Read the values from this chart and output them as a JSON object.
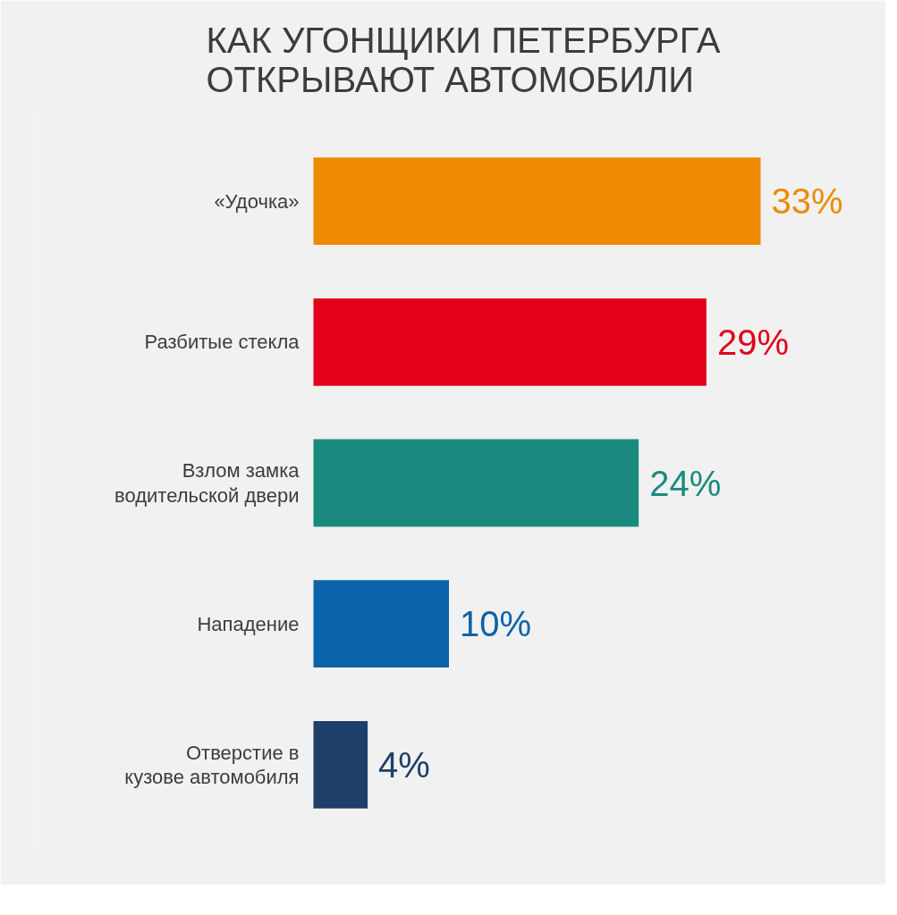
{
  "chart_data": {
    "type": "bar",
    "orientation": "horizontal",
    "title": "КАК УГОНЩИКИ ПЕТЕРБУРГА ОТКРЫВАЮТ АВТОМОБИЛИ",
    "categories": [
      "«Удочка»",
      "Разбитые стекла",
      "Взлом замка водительской двери",
      "Нападение",
      "Отверстие в кузове автомобиля"
    ],
    "values": [
      33,
      29,
      24,
      10,
      4
    ],
    "value_labels": [
      "33%",
      "29%",
      "24%",
      "10%",
      "4%"
    ],
    "colors": [
      "#ee8a00",
      "#e2001a",
      "#1a8a80",
      "#0a63a8",
      "#1f3f6b"
    ],
    "tick_labels": "y"
  }
}
